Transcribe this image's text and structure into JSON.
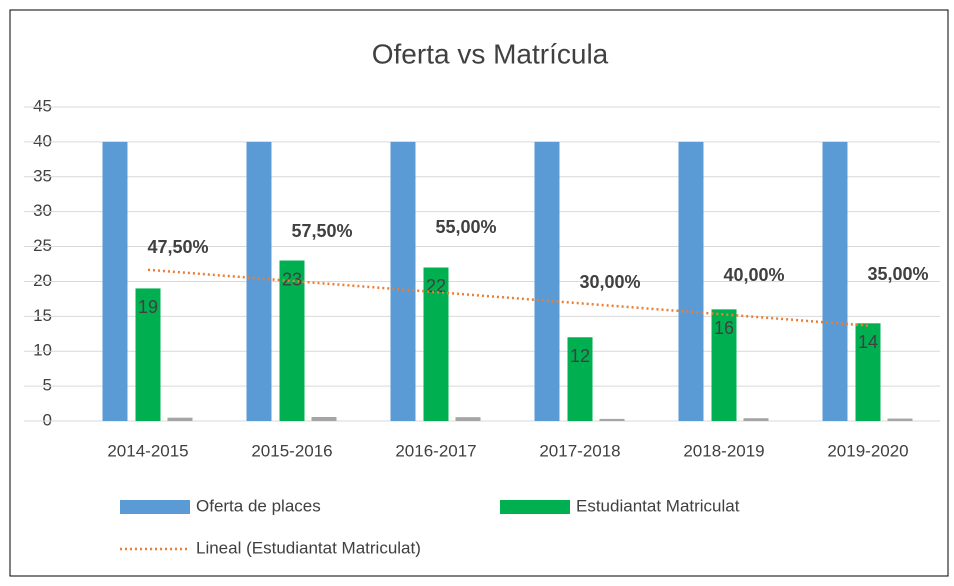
{
  "chart_data": {
    "type": "bar",
    "title": "Oferta vs Matrícula",
    "categories": [
      "2014-2015",
      "2015-2016",
      "2016-2017",
      "2017-2018",
      "2018-2019",
      "2019-2020"
    ],
    "series": [
      {
        "name": "Oferta de places",
        "color": "#5b9bd5",
        "values": [
          40,
          40,
          40,
          40,
          40,
          40
        ]
      },
      {
        "name": "Estudiantat Matriculat",
        "color": "#00b050",
        "values": [
          19,
          23,
          22,
          12,
          16,
          14
        ]
      },
      {
        "color": "#a5a5a5",
        "values": [
          0.475,
          0.575,
          0.55,
          0.3,
          0.4,
          0.35
        ],
        "value_labels": [
          "47,50%",
          "57,50%",
          "55,00%",
          "30,00%",
          "40,00%",
          "35,00%"
        ]
      }
    ],
    "trendline": {
      "name": "Lineal (Estudiantat Matriculat)",
      "color": "#ed7d31",
      "values": [
        21.67,
        20.07,
        18.47,
        16.87,
        15.27,
        13.67
      ]
    },
    "ylim": [
      0,
      45
    ],
    "yticks": [
      0,
      5,
      10,
      15,
      20,
      25,
      30,
      35,
      40,
      45
    ],
    "grid": true
  }
}
